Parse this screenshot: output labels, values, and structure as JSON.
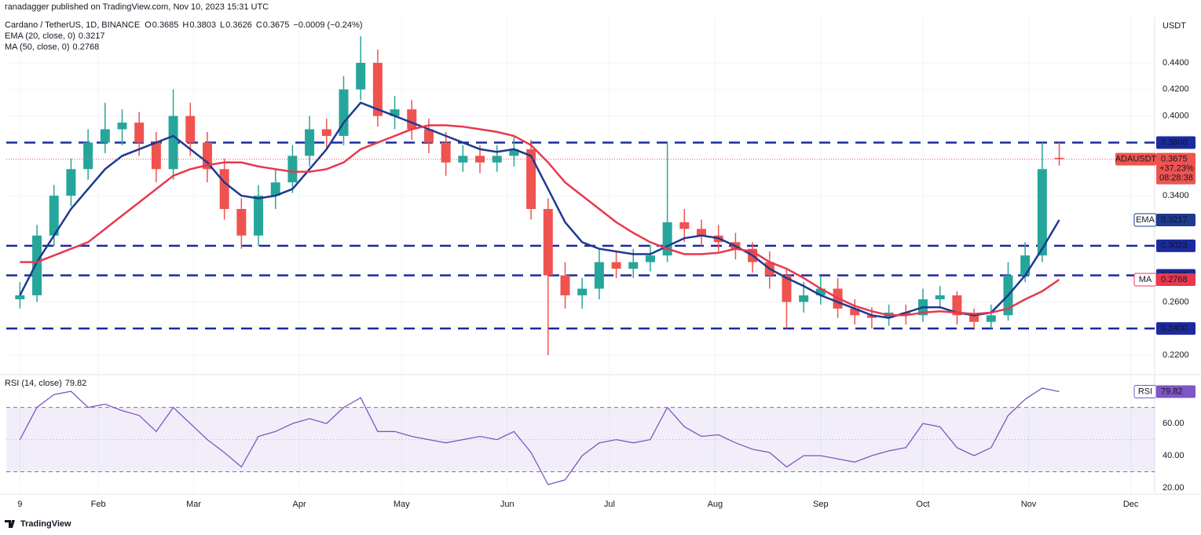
{
  "chart_data": {
    "type": "candlestick",
    "publisher": "ranadagger published on TradingView.com, Nov 10, 2023 15:31 UTC",
    "symbol": "Cardano / TetherUS, 1D, BINANCE",
    "ohlc_letters": [
      "O",
      "H",
      "L",
      "C"
    ],
    "change": "−0.0009 (−0.24%)",
    "currency": "USDT",
    "ticker": "ADAUSDT",
    "change_pct": "+37.23%",
    "countdown": "08:28:38",
    "brand": "TradingView",
    "up_color": "#26a69a",
    "down_color": "#ef5350",
    "x": [
      9,
      14,
      19,
      24,
      29,
      34,
      39,
      44,
      49,
      54,
      59,
      64,
      69,
      74,
      79,
      84,
      89,
      94,
      99,
      104,
      109,
      114,
      119,
      124,
      129,
      134,
      139,
      144,
      149,
      154,
      159,
      164,
      169,
      174,
      179,
      184,
      189,
      194,
      199,
      204,
      209,
      214,
      219,
      224,
      229,
      234,
      239,
      244,
      249,
      254,
      259,
      264,
      269,
      274,
      279,
      284,
      289,
      294,
      299,
      304,
      309,
      314
    ],
    "open": [
      0.262,
      0.265,
      0.31,
      0.34,
      0.36,
      0.38,
      0.39,
      0.395,
      0.38,
      0.36,
      0.4,
      0.38,
      0.36,
      0.33,
      0.31,
      0.34,
      0.35,
      0.37,
      0.39,
      0.385,
      0.42,
      0.44,
      0.4,
      0.405,
      0.39,
      0.38,
      0.365,
      0.37,
      0.365,
      0.37,
      0.375,
      0.33,
      0.28,
      0.265,
      0.27,
      0.29,
      0.285,
      0.29,
      0.295,
      0.32,
      0.315,
      0.31,
      0.305,
      0.3,
      0.29,
      0.28,
      0.26,
      0.265,
      0.27,
      0.255,
      0.25,
      0.248,
      0.252,
      0.25,
      0.262,
      0.265,
      0.25,
      0.245,
      0.25,
      0.28,
      0.295,
      0.3685
    ],
    "high": [
      0.275,
      0.318,
      0.348,
      0.368,
      0.39,
      0.41,
      0.405,
      0.403,
      0.388,
      0.42,
      0.41,
      0.388,
      0.368,
      0.338,
      0.348,
      0.36,
      0.378,
      0.4,
      0.398,
      0.43,
      0.46,
      0.45,
      0.415,
      0.412,
      0.398,
      0.388,
      0.378,
      0.378,
      0.378,
      0.385,
      0.382,
      0.338,
      0.29,
      0.278,
      0.3,
      0.298,
      0.3,
      0.303,
      0.38,
      0.33,
      0.322,
      0.318,
      0.312,
      0.305,
      0.298,
      0.285,
      0.275,
      0.28,
      0.278,
      0.262,
      0.256,
      0.258,
      0.258,
      0.27,
      0.272,
      0.268,
      0.255,
      0.258,
      0.29,
      0.305,
      0.38,
      0.3803
    ],
    "low": [
      0.255,
      0.26,
      0.302,
      0.332,
      0.352,
      0.372,
      0.378,
      0.37,
      0.35,
      0.352,
      0.37,
      0.35,
      0.322,
      0.3,
      0.302,
      0.33,
      0.342,
      0.362,
      0.375,
      0.378,
      0.412,
      0.392,
      0.39,
      0.382,
      0.372,
      0.355,
      0.358,
      0.357,
      0.358,
      0.362,
      0.322,
      0.22,
      0.255,
      0.255,
      0.262,
      0.278,
      0.278,
      0.283,
      0.29,
      0.305,
      0.302,
      0.298,
      0.292,
      0.282,
      0.27,
      0.24,
      0.252,
      0.258,
      0.248,
      0.243,
      0.24,
      0.242,
      0.243,
      0.245,
      0.255,
      0.243,
      0.24,
      0.24,
      0.246,
      0.275,
      0.29,
      0.3626
    ],
    "close": [
      0.265,
      0.31,
      0.34,
      0.36,
      0.38,
      0.39,
      0.395,
      0.38,
      0.36,
      0.4,
      0.38,
      0.36,
      0.33,
      0.31,
      0.34,
      0.35,
      0.37,
      0.39,
      0.385,
      0.42,
      0.44,
      0.4,
      0.405,
      0.39,
      0.38,
      0.365,
      0.37,
      0.365,
      0.37,
      0.375,
      0.33,
      0.28,
      0.265,
      0.27,
      0.29,
      0.285,
      0.29,
      0.295,
      0.32,
      0.315,
      0.31,
      0.305,
      0.3,
      0.29,
      0.28,
      0.26,
      0.265,
      0.27,
      0.255,
      0.25,
      0.248,
      0.252,
      0.25,
      0.262,
      0.265,
      0.25,
      0.245,
      0.25,
      0.28,
      0.295,
      0.36,
      0.3675
    ],
    "series": [
      {
        "name": "EMA (20, close, 0)",
        "badge": "EMA",
        "color": "#1e3a8f",
        "values": [
          0.265,
          0.29,
          0.31,
          0.33,
          0.345,
          0.36,
          0.37,
          0.375,
          0.38,
          0.385,
          0.375,
          0.365,
          0.35,
          0.34,
          0.338,
          0.34,
          0.345,
          0.36,
          0.375,
          0.395,
          0.41,
          0.405,
          0.4,
          0.395,
          0.39,
          0.385,
          0.38,
          0.375,
          0.373,
          0.375,
          0.37,
          0.345,
          0.32,
          0.305,
          0.3,
          0.298,
          0.296,
          0.296,
          0.302,
          0.308,
          0.31,
          0.308,
          0.302,
          0.295,
          0.285,
          0.278,
          0.272,
          0.265,
          0.26,
          0.255,
          0.25,
          0.248,
          0.252,
          0.256,
          0.256,
          0.252,
          0.25,
          0.252,
          0.265,
          0.28,
          0.3,
          0.3217
        ]
      },
      {
        "name": "MA (50, close, 0)",
        "badge": "MA",
        "color": "#e8384f",
        "values": [
          0.29,
          0.29,
          0.295,
          0.3,
          0.305,
          0.315,
          0.325,
          0.335,
          0.345,
          0.355,
          0.36,
          0.363,
          0.365,
          0.365,
          0.362,
          0.36,
          0.358,
          0.358,
          0.36,
          0.365,
          0.375,
          0.38,
          0.385,
          0.39,
          0.393,
          0.393,
          0.392,
          0.39,
          0.388,
          0.385,
          0.378,
          0.365,
          0.35,
          0.34,
          0.33,
          0.32,
          0.312,
          0.305,
          0.3,
          0.296,
          0.296,
          0.297,
          0.3,
          0.298,
          0.29,
          0.285,
          0.278,
          0.27,
          0.263,
          0.257,
          0.253,
          0.25,
          0.25,
          0.252,
          0.253,
          0.252,
          0.251,
          0.252,
          0.255,
          0.262,
          0.268,
          0.2768
        ]
      }
    ],
    "levels": [
      {
        "value": 0.38,
        "label": "0.3800"
      },
      {
        "value": 0.3023,
        "label": "0.3023"
      },
      {
        "value": 0.28,
        "label": "0.2800"
      },
      {
        "value": 0.24,
        "label": "0.2400"
      }
    ],
    "level_color": "#1b2a9e",
    "xlim": [
      5,
      342
    ],
    "xticks": [
      9,
      {
        "value": 32,
        "label": "Feb"
      },
      {
        "value": 60,
        "label": "Mar"
      },
      {
        "value": 91,
        "label": "Apr"
      },
      {
        "value": 121,
        "label": "May"
      },
      {
        "value": 152,
        "label": "Jun"
      },
      {
        "value": 182,
        "label": "Jul"
      },
      {
        "value": 213,
        "label": "Aug"
      },
      {
        "value": 244,
        "label": "Sep"
      },
      {
        "value": 274,
        "label": "Oct"
      },
      {
        "value": 305,
        "label": "Nov"
      },
      {
        "value": 335,
        "label": "Dec"
      }
    ],
    "ylim": [
      0.2058,
      0.4743
    ],
    "yticks": [
      {
        "value": 0.22,
        "label": "0.2200"
      },
      {
        "value": 0.26,
        "label": "0.2600"
      },
      {
        "value": 0.34,
        "label": "0.3400"
      },
      {
        "value": 0.4,
        "label": "0.4000"
      },
      {
        "value": 0.42,
        "label": "0.4200"
      },
      {
        "value": 0.44,
        "label": "0.4400"
      }
    ],
    "grid": true,
    "rsi": {
      "name": "RSI (14, close)",
      "badge": "RSI",
      "color": "#7e57c2",
      "values": [
        50,
        70,
        78,
        80,
        70,
        72,
        68,
        65,
        55,
        70,
        60,
        50,
        42,
        33,
        52,
        55,
        60,
        63,
        60,
        70,
        76,
        55,
        55,
        52,
        50,
        48,
        50,
        52,
        50,
        55,
        42,
        22,
        25,
        40,
        48,
        50,
        48,
        50,
        70,
        58,
        52,
        53,
        48,
        44,
        42,
        33,
        40,
        40,
        38,
        36,
        40,
        43,
        45,
        60,
        58,
        45,
        40,
        45,
        65,
        75,
        82,
        79.82
      ],
      "ylim": [
        16.6,
        89.8
      ],
      "yticks": [
        {
          "value": 20,
          "label": "20.00"
        },
        {
          "value": 40,
          "label": "40.00"
        },
        {
          "value": 60,
          "label": "60.00"
        }
      ],
      "band": [
        30,
        70
      ],
      "mid": 50
    }
  }
}
